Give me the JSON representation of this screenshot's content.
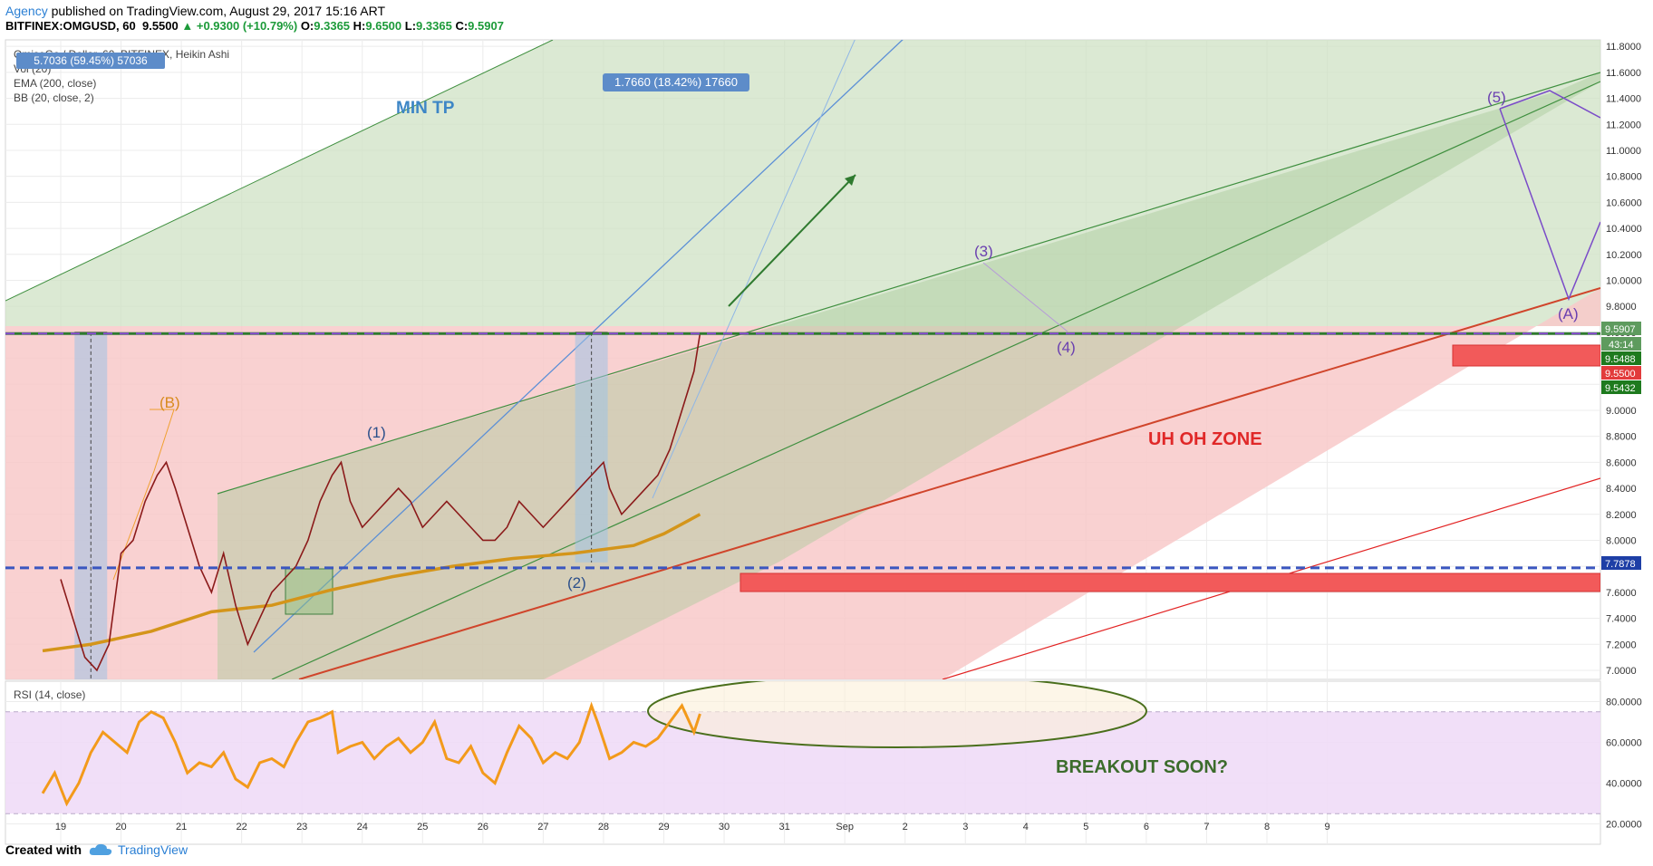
{
  "header": {
    "publisher": "Agency",
    "published_text": " published on TradingView.com, August 29, 2017 15:16 ART",
    "symbol": "BITFINEX:OMGUSD, 60",
    "last": "9.5500",
    "change_arrow": "▲",
    "change": "+0.9300 (+10.79%)",
    "o_label": "O:",
    "o": "9.3365",
    "h_label": "H:",
    "h": "9.6500",
    "l_label": "L:",
    "l": "9.3365",
    "c_label": "C:",
    "c": "9.5907"
  },
  "legend": {
    "title": "OmiseGo / Dollar, 60, BITFINEX, Heikin Ashi",
    "vol": "Vol (20)",
    "ema": "EMA (200, close)",
    "bb": "BB (20, close, 2)"
  },
  "measure_labels": {
    "left": "5.7036 (59.45%) 57036",
    "right": "1.7660 (18.42%) 17660"
  },
  "annotations": {
    "min_tp": "MIN TP",
    "uh_oh": "UH OH ZONE",
    "breakout": "BREAKOUT SOON?",
    "wave_B": "(B)",
    "wave_1": "(1)",
    "wave_2": "(2)",
    "wave_3": "(3)",
    "wave_4": "(4)",
    "wave_5": "(5)",
    "wave_A": "(A)"
  },
  "rsi_label": "RSI (14, close)",
  "price_badges": {
    "last": "9.5907",
    "countdown": "43:14",
    "b1": "9.5488",
    "b2": "9.5500",
    "b3": "9.5432",
    "support": "7.7878"
  },
  "colors": {
    "accent_blue": "#2a7fd4",
    "green_channel": "#8fbf7f",
    "red_zone": "#f7a3a3",
    "wave_purple": "#7a4bc8",
    "ema_orange": "#d4951a",
    "rsi_orange": "#f39a1b",
    "rsi_band": "#efdcf7"
  },
  "chart_data": {
    "type": "line",
    "main": {
      "y_ticks": [
        "11.8000",
        "11.6000",
        "11.4000",
        "11.2000",
        "11.0000",
        "10.8000",
        "10.6000",
        "10.4000",
        "10.2000",
        "10.0000",
        "9.8000",
        "9.6000",
        "9.4000",
        "9.2000",
        "9.0000",
        "8.8000",
        "8.6000",
        "8.4000",
        "8.2000",
        "8.0000",
        "7.8000",
        "7.6000",
        "7.4000",
        "7.2000",
        "7.0000"
      ],
      "ylim": [
        6.93,
        11.85
      ]
    },
    "x_ticks": [
      "19",
      "20",
      "21",
      "22",
      "23",
      "24",
      "25",
      "26",
      "27",
      "28",
      "29",
      "30",
      "31",
      "Sep",
      "2",
      "3",
      "4",
      "5",
      "6",
      "7",
      "8",
      "9"
    ],
    "rsi": {
      "y_ticks": [
        "80.0000",
        "60.0000",
        "40.0000",
        "20.0000"
      ],
      "ylim": [
        10,
        90
      ],
      "band": [
        30,
        70
      ]
    },
    "price_series": {
      "name": "",
      "x": [
        19.0,
        19.2,
        19.4,
        19.6,
        19.8,
        20.0,
        20.2,
        20.4,
        20.6,
        20.75,
        20.9,
        21.1,
        21.3,
        21.5,
        21.7,
        21.9,
        22.1,
        22.3,
        22.5,
        22.7,
        22.9,
        23.1,
        23.3,
        23.5,
        23.65,
        23.8,
        24.0,
        24.2,
        24.4,
        24.6,
        24.8,
        25.0,
        25.2,
        25.4,
        25.6,
        25.8,
        26.0,
        26.2,
        26.4,
        26.6,
        26.8,
        27.0,
        27.2,
        27.4,
        27.6,
        27.8,
        28.0,
        28.1,
        28.3,
        28.5,
        28.7,
        28.9,
        29.1,
        29.3,
        29.5,
        29.6
      ],
      "y": [
        7.7,
        7.4,
        7.1,
        7.0,
        7.2,
        7.9,
        8.0,
        8.3,
        8.5,
        8.6,
        8.4,
        8.1,
        7.8,
        7.6,
        7.9,
        7.5,
        7.2,
        7.4,
        7.6,
        7.7,
        7.8,
        8.0,
        8.3,
        8.5,
        8.6,
        8.3,
        8.1,
        8.2,
        8.3,
        8.4,
        8.3,
        8.1,
        8.2,
        8.3,
        8.2,
        8.1,
        8.0,
        8.0,
        8.1,
        8.3,
        8.2,
        8.1,
        8.2,
        8.3,
        8.4,
        8.5,
        8.6,
        8.4,
        8.2,
        8.3,
        8.4,
        8.5,
        8.7,
        9.0,
        9.3,
        9.59
      ]
    },
    "rsi_series": {
      "name": "",
      "x": [
        18.7,
        18.9,
        19.1,
        19.3,
        19.5,
        19.7,
        19.9,
        20.1,
        20.3,
        20.5,
        20.7,
        20.9,
        21.1,
        21.3,
        21.5,
        21.7,
        21.9,
        22.1,
        22.3,
        22.5,
        22.7,
        22.9,
        23.1,
        23.3,
        23.5,
        23.6,
        23.8,
        24.0,
        24.2,
        24.4,
        24.6,
        24.8,
        25.0,
        25.2,
        25.4,
        25.6,
        25.8,
        26.0,
        26.2,
        26.4,
        26.6,
        26.8,
        27.0,
        27.2,
        27.4,
        27.6,
        27.8,
        27.9,
        28.1,
        28.3,
        28.5,
        28.7,
        28.9,
        29.1,
        29.3,
        29.5,
        29.6
      ],
      "y": [
        35,
        45,
        30,
        40,
        55,
        65,
        60,
        55,
        70,
        75,
        72,
        60,
        45,
        50,
        48,
        55,
        42,
        38,
        50,
        52,
        48,
        60,
        70,
        72,
        75,
        55,
        58,
        60,
        52,
        58,
        62,
        55,
        60,
        70,
        52,
        50,
        58,
        45,
        40,
        55,
        68,
        62,
        50,
        55,
        52,
        60,
        78,
        70,
        52,
        55,
        60,
        58,
        62,
        70,
        78,
        65,
        74
      ]
    },
    "ema_series": {
      "name": "",
      "x": [
        18.7,
        19.5,
        20.5,
        21.5,
        22.5,
        23.5,
        24.5,
        25.5,
        26.5,
        27.5,
        28.5,
        29.0,
        29.6
      ],
      "y": [
        7.15,
        7.2,
        7.3,
        7.45,
        7.5,
        7.62,
        7.72,
        7.8,
        7.86,
        7.9,
        7.96,
        8.05,
        8.2
      ]
    },
    "min_tp_measure": {
      "from": 6.93,
      "to": 9.6,
      "x": 19.5
    },
    "target_measure": {
      "from": 7.83,
      "to": 9.6,
      "x": 27.8
    },
    "support_level": 7.7878,
    "resistance_level": 9.59
  }
}
